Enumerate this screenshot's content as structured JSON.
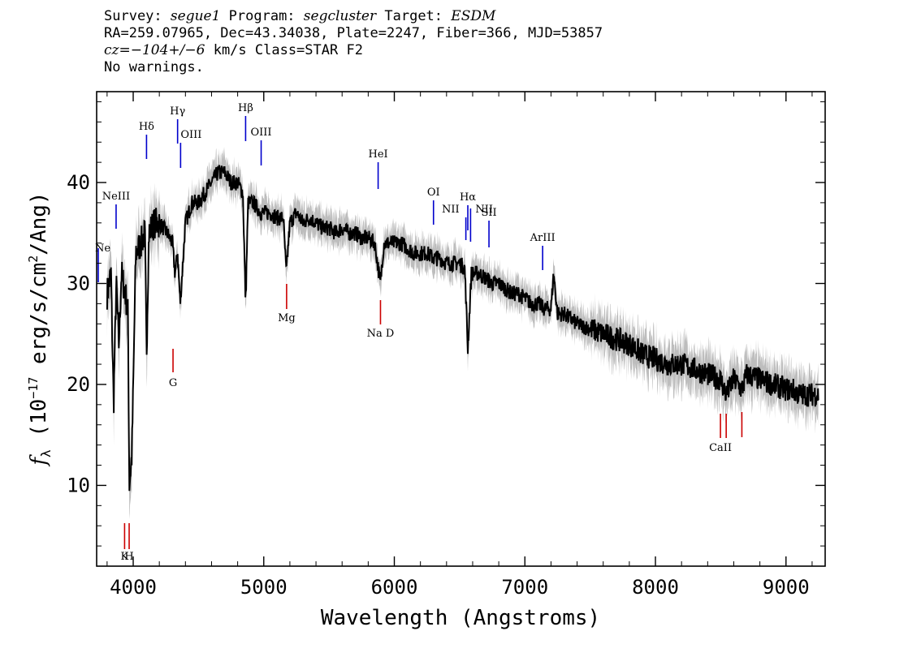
{
  "header": {
    "survey_label": "Survey:",
    "survey": "segue1",
    "program_label": "Program:",
    "program": "segcluster",
    "target_label": "Target:",
    "target": "ESDM",
    "line2": "RA=259.07965, Dec=43.34038, Plate=2247, Fiber=366, MJD=53857",
    "cz_label": "cz=",
    "cz_value": "−104+/−6",
    "cz_rest": " km/s Class=STAR F2",
    "warnings": "No warnings."
  },
  "colors": {
    "flux": "#000000",
    "error": "#bdbdbd",
    "emission_lines": "#0000cc",
    "absorption_lines": "#cc0000"
  },
  "chart_data": {
    "type": "line",
    "xlabel": "Wavelength (Angstroms)",
    "ylabel_prefix": "f",
    "ylabel_sub": "λ",
    "ylabel_unit_pre": " (10",
    "ylabel_exp": "−17",
    "ylabel_unit_post": " erg/s/cm",
    "ylabel_exp2": "2",
    "ylabel_unit_end": "/Ang)",
    "xlim": [
      3720,
      9300
    ],
    "ylim": [
      2,
      49
    ],
    "xticks": [
      4000,
      5000,
      6000,
      7000,
      8000,
      9000
    ],
    "yticks": [
      10,
      20,
      30,
      40
    ],
    "series": [
      {
        "style": "black-line",
        "x": [
          3800,
          3830,
          3850,
          3870,
          3890,
          3910,
          3940,
          3960,
          3970,
          3990,
          4020,
          4060,
          4090,
          4102,
          4120,
          4160,
          4200,
          4260,
          4300,
          4320,
          4340,
          4360,
          4400,
          4450,
          4500,
          4550,
          4600,
          4650,
          4700,
          4750,
          4800,
          4840,
          4861,
          4880,
          4920,
          4980,
          5050,
          5100,
          5150,
          5172,
          5200,
          5250,
          5300,
          5350,
          5400,
          5450,
          5500,
          5550,
          5600,
          5650,
          5700,
          5750,
          5800,
          5850,
          5893,
          5920,
          5960,
          6000,
          6050,
          6100,
          6150,
          6200,
          6250,
          6300,
          6350,
          6400,
          6450,
          6500,
          6540,
          6563,
          6590,
          6650,
          6700,
          6750,
          6800,
          6850,
          6900,
          6950,
          7000,
          7050,
          7100,
          7150,
          7200,
          7220,
          7250,
          7300,
          7400,
          7500,
          7600,
          7700,
          7800,
          7900,
          8000,
          8100,
          8200,
          8300,
          8400,
          8498,
          8542,
          8600,
          8662,
          8700,
          8800,
          8900,
          9000,
          9050,
          9100,
          9150,
          9200,
          9250
        ],
        "y": [
          29,
          31,
          18,
          30,
          24,
          31,
          29,
          27,
          10,
          13,
          33,
          34,
          35,
          23,
          35,
          36,
          36,
          35,
          34,
          31,
          33,
          28,
          36,
          38,
          38,
          39,
          40,
          41,
          41,
          40,
          40,
          39,
          28,
          38,
          38,
          37,
          37,
          36.5,
          36.5,
          31,
          36,
          37,
          36,
          36.5,
          36,
          35.5,
          35.5,
          35,
          35.5,
          35,
          35,
          34.5,
          34.5,
          34,
          30,
          34,
          34,
          34,
          34,
          33.5,
          33,
          33,
          33,
          32.5,
          32.5,
          32,
          32,
          32,
          31.5,
          23.5,
          31,
          31,
          30.5,
          30,
          30,
          29.5,
          29,
          29,
          28.5,
          28,
          28,
          27.5,
          27.5,
          31,
          27,
          27,
          26,
          25.5,
          25,
          24.5,
          24,
          23,
          22.5,
          22,
          22,
          21.5,
          21,
          20.5,
          19,
          20.5,
          19.5,
          21,
          20.5,
          20,
          19.5,
          19.5,
          19,
          19,
          19,
          19
        ]
      }
    ],
    "lines": [
      {
        "label": "Ne",
        "x": 3727,
        "type": "emission"
      },
      {
        "label": "NeIII",
        "x": 3869,
        "type": "emission"
      },
      {
        "label": "Hδ",
        "x": 4102,
        "type": "emission"
      },
      {
        "label": "Hγ",
        "x": 4340,
        "type": "emission"
      },
      {
        "label": "OIII",
        "x": 4363,
        "type": "emission"
      },
      {
        "label": "Hβ",
        "x": 4861,
        "type": "emission"
      },
      {
        "label": "OIII",
        "x": 4980,
        "type": "emission"
      },
      {
        "label": "HeI",
        "x": 5876,
        "type": "emission"
      },
      {
        "label": "OI",
        "x": 6300,
        "type": "emission"
      },
      {
        "label": "NII",
        "x": 6548,
        "type": "emission"
      },
      {
        "label": "Hα",
        "x": 6563,
        "type": "emission"
      },
      {
        "label": "NII",
        "x": 6584,
        "type": "emission"
      },
      {
        "label": "SII",
        "x": 6725,
        "type": "emission"
      },
      {
        "label": "ArIII",
        "x": 7136,
        "type": "emission"
      },
      {
        "label": "K",
        "x": 3934,
        "type": "absorption"
      },
      {
        "label": "H",
        "x": 3969,
        "type": "absorption"
      },
      {
        "label": "G",
        "x": 4305,
        "type": "absorption"
      },
      {
        "label": "Mg",
        "x": 5175,
        "type": "absorption"
      },
      {
        "label": "Na D",
        "x": 5894,
        "type": "absorption"
      },
      {
        "label": "CaII",
        "x": 8498,
        "type": "absorption"
      },
      {
        "label": "CaII",
        "x": 8542,
        "type": "absorption"
      },
      {
        "label": "CaII",
        "x": 8662,
        "type": "absorption"
      }
    ]
  }
}
